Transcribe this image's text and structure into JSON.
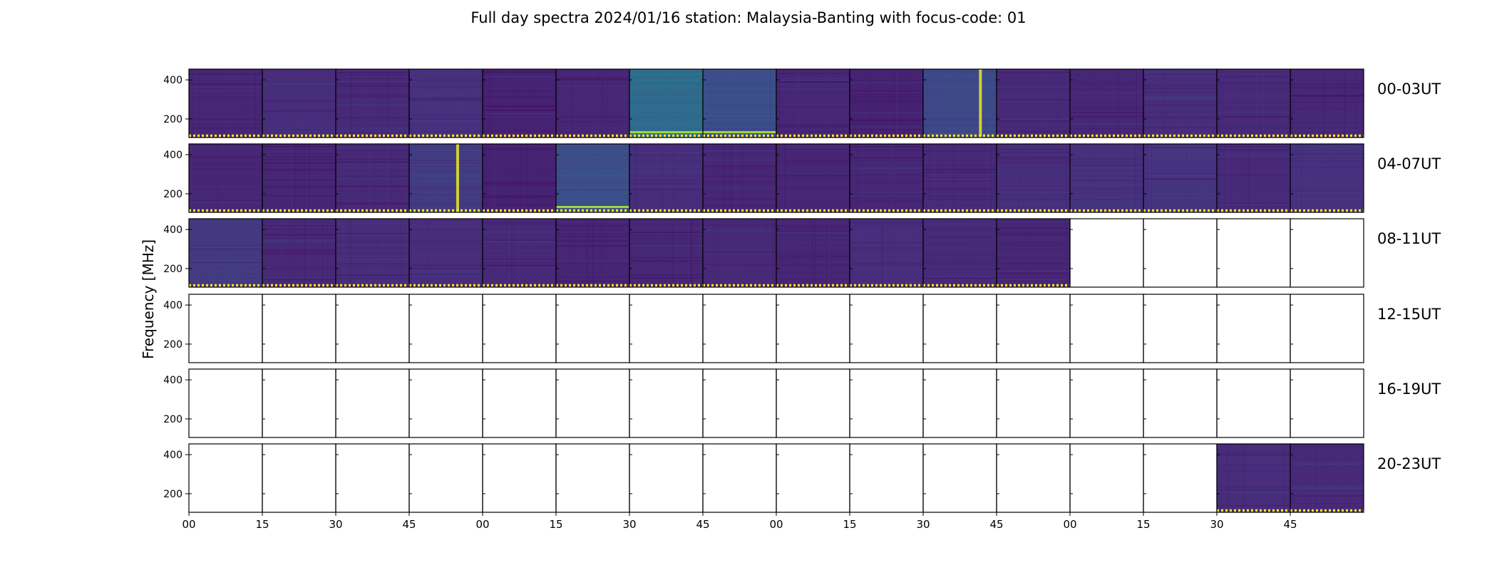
{
  "chart_data": {
    "type": "heatmap",
    "title": "Full day spectra 2024/01/16 station: Malaysia-Banting with focus-code: 01",
    "ylabel": "Frequency [MHz]",
    "xlabel": "",
    "y_ticks": [
      200,
      400
    ],
    "ylim": [
      105,
      455
    ],
    "x_tick_labels": [
      "00",
      "15",
      "30",
      "45",
      "00",
      "15",
      "30",
      "45",
      "00",
      "15",
      "30",
      "45",
      "00",
      "15",
      "30",
      "45"
    ],
    "row_labels": [
      "00-03UT",
      "04-07UT",
      "08-11UT",
      "12-15UT",
      "16-19UT",
      "20-23UT"
    ],
    "colormap": "viridis",
    "colormap_stops": [
      "#440154",
      "#472f7d",
      "#3b518b",
      "#2c718e",
      "#21918c",
      "#27ad81",
      "#5cc863",
      "#aadc32",
      "#fde725"
    ],
    "minutes_per_panel": 15,
    "panels_per_row": 16,
    "rows": [
      {
        "label": "00-03UT",
        "panels": [
          {
            "has_data": true,
            "level": 0.1
          },
          {
            "has_data": true,
            "level": 0.12
          },
          {
            "has_data": true,
            "level": 0.11
          },
          {
            "has_data": true,
            "level": 0.13
          },
          {
            "has_data": true,
            "level": 0.09
          },
          {
            "has_data": true,
            "level": 0.1
          },
          {
            "has_data": true,
            "level": 0.35,
            "bottom_band": true
          },
          {
            "has_data": true,
            "level": 0.24,
            "bottom_band": true
          },
          {
            "has_data": true,
            "level": 0.1
          },
          {
            "has_data": true,
            "level": 0.09
          },
          {
            "has_data": true,
            "level": 0.22,
            "spike_pos": 0.78
          },
          {
            "has_data": true,
            "level": 0.11
          },
          {
            "has_data": true,
            "level": 0.1
          },
          {
            "has_data": true,
            "level": 0.12
          },
          {
            "has_data": true,
            "level": 0.11
          },
          {
            "has_data": true,
            "level": 0.1
          }
        ]
      },
      {
        "label": "04-07UT",
        "panels": [
          {
            "has_data": true,
            "level": 0.1
          },
          {
            "has_data": true,
            "level": 0.1
          },
          {
            "has_data": true,
            "level": 0.11
          },
          {
            "has_data": true,
            "level": 0.17,
            "spike_pos": 0.66
          },
          {
            "has_data": true,
            "level": 0.09
          },
          {
            "has_data": true,
            "level": 0.24,
            "bottom_band": true
          },
          {
            "has_data": true,
            "level": 0.12
          },
          {
            "has_data": true,
            "level": 0.1
          },
          {
            "has_data": true,
            "level": 0.1
          },
          {
            "has_data": true,
            "level": 0.1
          },
          {
            "has_data": true,
            "level": 0.11
          },
          {
            "has_data": true,
            "level": 0.12
          },
          {
            "has_data": true,
            "level": 0.13
          },
          {
            "has_data": true,
            "level": 0.14
          },
          {
            "has_data": true,
            "level": 0.11
          },
          {
            "has_data": true,
            "level": 0.13
          }
        ]
      },
      {
        "label": "08-11UT",
        "panels": [
          {
            "has_data": true,
            "level": 0.16
          },
          {
            "has_data": true,
            "level": 0.11
          },
          {
            "has_data": true,
            "level": 0.12
          },
          {
            "has_data": true,
            "level": 0.12
          },
          {
            "has_data": true,
            "level": 0.11
          },
          {
            "has_data": true,
            "level": 0.1
          },
          {
            "has_data": true,
            "level": 0.1
          },
          {
            "has_data": true,
            "level": 0.11
          },
          {
            "has_data": true,
            "level": 0.1
          },
          {
            "has_data": true,
            "level": 0.12
          },
          {
            "has_data": true,
            "level": 0.11
          },
          {
            "has_data": true,
            "level": 0.1
          },
          {
            "has_data": false
          },
          {
            "has_data": false
          },
          {
            "has_data": false
          },
          {
            "has_data": false
          }
        ]
      },
      {
        "label": "12-15UT",
        "panels": [
          {
            "has_data": false
          },
          {
            "has_data": false
          },
          {
            "has_data": false
          },
          {
            "has_data": false
          },
          {
            "has_data": false
          },
          {
            "has_data": false
          },
          {
            "has_data": false
          },
          {
            "has_data": false
          },
          {
            "has_data": false
          },
          {
            "has_data": false
          },
          {
            "has_data": false
          },
          {
            "has_data": false
          },
          {
            "has_data": false
          },
          {
            "has_data": false
          },
          {
            "has_data": false
          },
          {
            "has_data": false
          }
        ]
      },
      {
        "label": "16-19UT",
        "panels": [
          {
            "has_data": false
          },
          {
            "has_data": false
          },
          {
            "has_data": false
          },
          {
            "has_data": false
          },
          {
            "has_data": false
          },
          {
            "has_data": false
          },
          {
            "has_data": false
          },
          {
            "has_data": false
          },
          {
            "has_data": false
          },
          {
            "has_data": false
          },
          {
            "has_data": false
          },
          {
            "has_data": false
          },
          {
            "has_data": false
          },
          {
            "has_data": false
          },
          {
            "has_data": false
          },
          {
            "has_data": false
          }
        ]
      },
      {
        "label": "20-23UT",
        "panels": [
          {
            "has_data": false
          },
          {
            "has_data": false
          },
          {
            "has_data": false
          },
          {
            "has_data": false
          },
          {
            "has_data": false
          },
          {
            "has_data": false
          },
          {
            "has_data": false
          },
          {
            "has_data": false
          },
          {
            "has_data": false
          },
          {
            "has_data": false
          },
          {
            "has_data": false
          },
          {
            "has_data": false
          },
          {
            "has_data": false
          },
          {
            "has_data": false
          },
          {
            "has_data": true,
            "level": 0.12
          },
          {
            "has_data": true,
            "level": 0.11
          }
        ]
      }
    ]
  }
}
